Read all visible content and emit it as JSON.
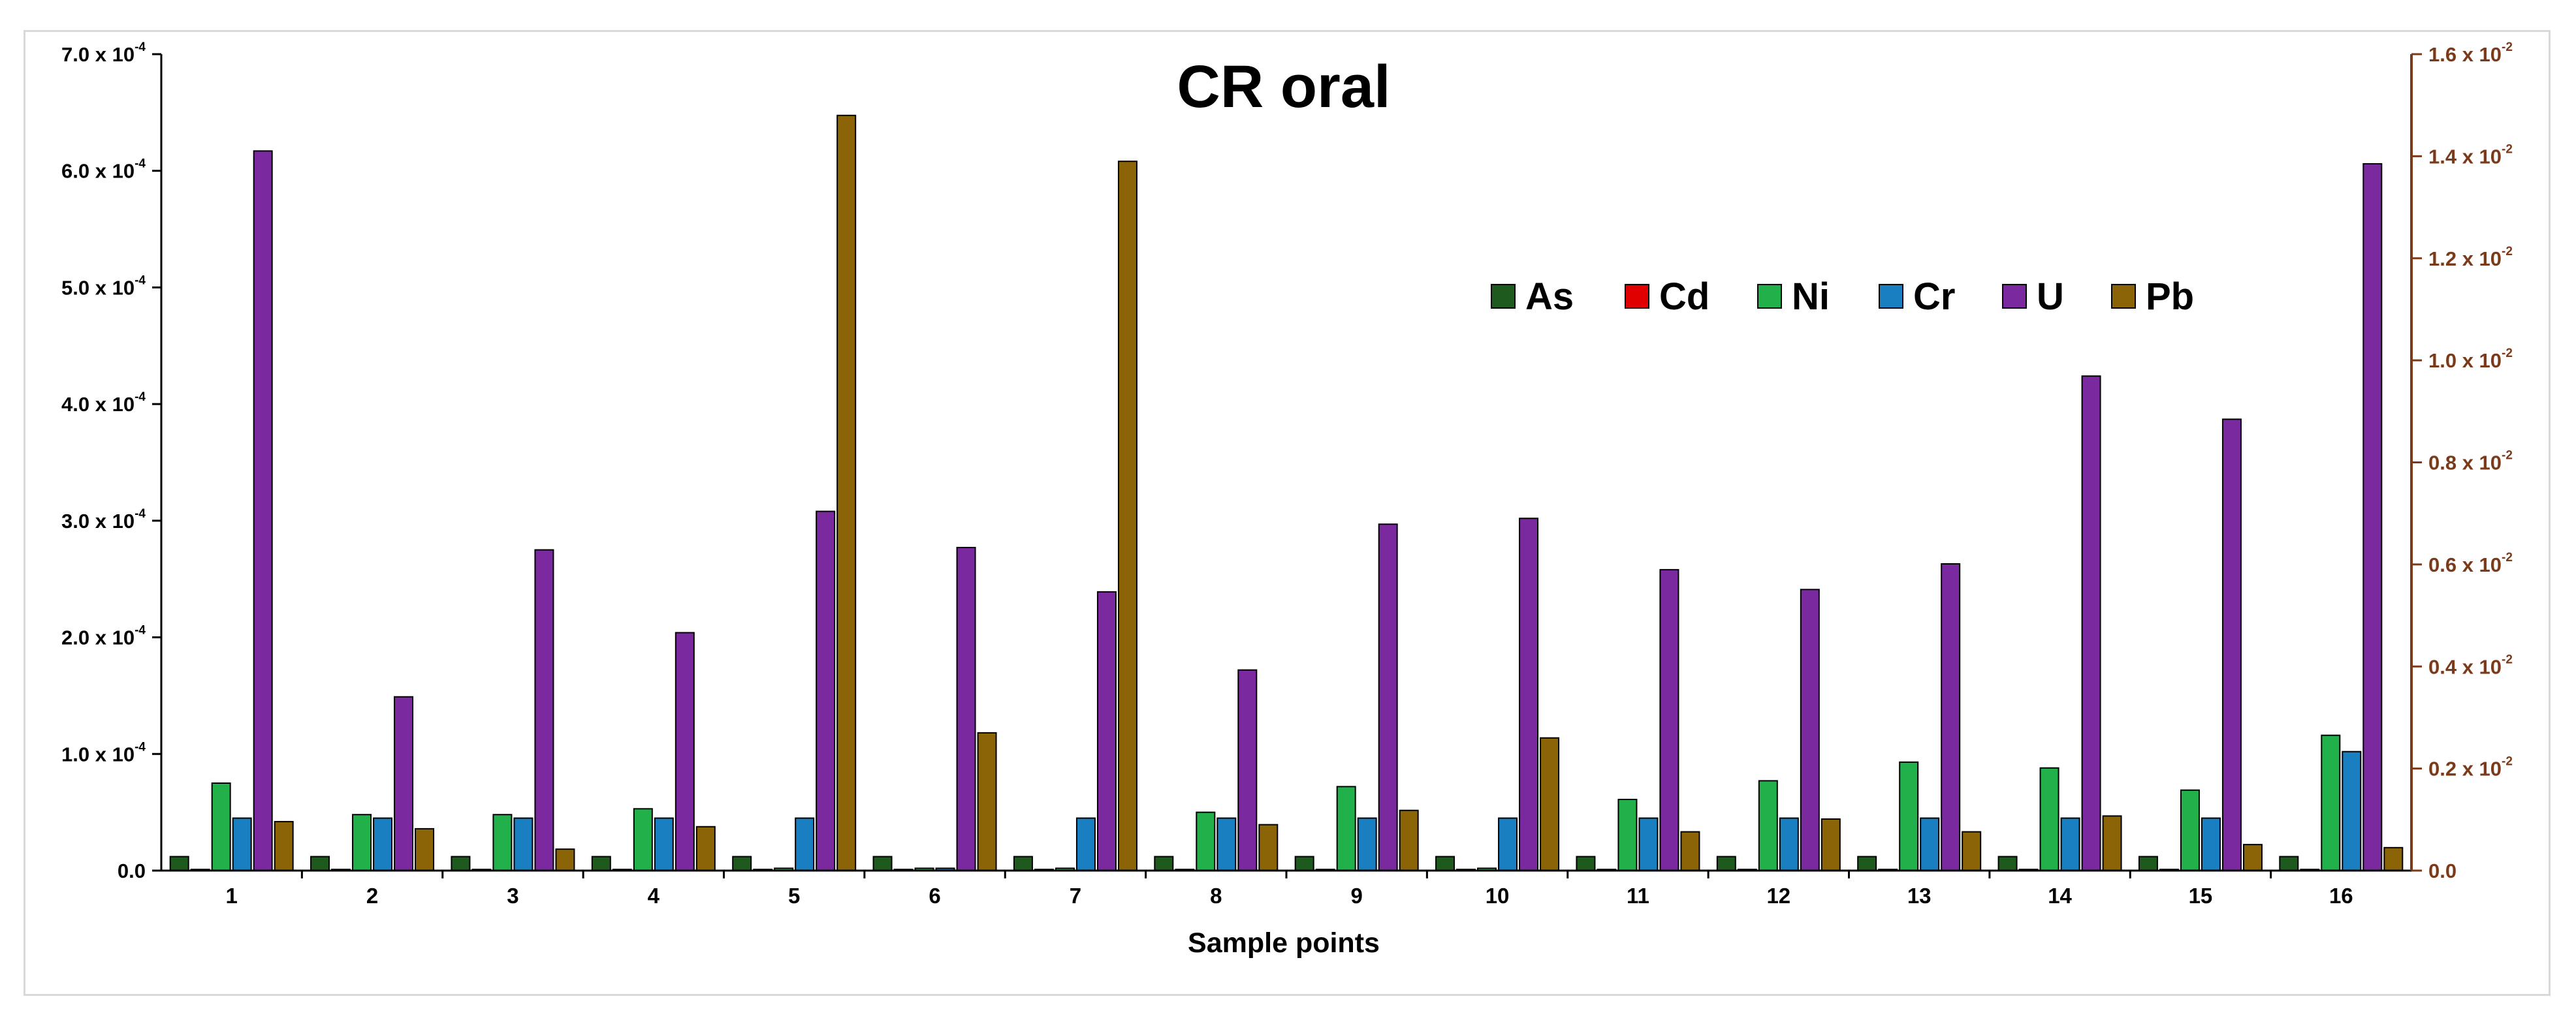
{
  "chart_data": {
    "type": "bar",
    "title": "CR oral",
    "xlabel": "Sample points",
    "ylabel": "",
    "categories": [
      "1",
      "2",
      "3",
      "4",
      "5",
      "6",
      "7",
      "8",
      "9",
      "10",
      "11",
      "12",
      "13",
      "14",
      "15",
      "16"
    ],
    "left_axis": {
      "ylim": [
        0,
        0.0007
      ],
      "ticks": [
        {
          "mantissa": "0.0",
          "exp": ""
        },
        {
          "mantissa": "1.0 x 10",
          "exp": "-4"
        },
        {
          "mantissa": "2.0 x 10",
          "exp": "-4"
        },
        {
          "mantissa": "3.0 x 10",
          "exp": "-4"
        },
        {
          "mantissa": "4.0 x 10",
          "exp": "-4"
        },
        {
          "mantissa": "5.0 x 10",
          "exp": "-4"
        },
        {
          "mantissa": "6.0 x 10",
          "exp": "-4"
        },
        {
          "mantissa": "7.0 x 10",
          "exp": "-4"
        }
      ],
      "tick_values": [
        0,
        0.0001,
        0.0002,
        0.0003,
        0.0004,
        0.0005,
        0.0006,
        0.0007
      ]
    },
    "right_axis": {
      "ylim": [
        0,
        0.016
      ],
      "color": "#7b3a1a",
      "ticks": [
        {
          "mantissa": "0.0",
          "exp": ""
        },
        {
          "mantissa": "0.2 x 10",
          "exp": "-2"
        },
        {
          "mantissa": "0.4 x 10",
          "exp": "-2"
        },
        {
          "mantissa": "0.6 x 10",
          "exp": "-2"
        },
        {
          "mantissa": "0.8 x 10",
          "exp": "-2"
        },
        {
          "mantissa": "1.0 x 10",
          "exp": "-2"
        },
        {
          "mantissa": "1.2 x 10",
          "exp": "-2"
        },
        {
          "mantissa": "1.4 x 10",
          "exp": "-2"
        },
        {
          "mantissa": "1.6 x 10",
          "exp": "-2"
        }
      ],
      "tick_values": [
        0,
        0.002,
        0.004,
        0.006,
        0.008,
        0.01,
        0.012,
        0.014,
        0.016
      ]
    },
    "series": [
      {
        "name": "As",
        "axis": "left",
        "color": "#1e5a1e",
        "values": [
          1.2e-05,
          1.2e-05,
          1.2e-05,
          1.2e-05,
          1.2e-05,
          1.2e-05,
          1.2e-05,
          1.2e-05,
          1.2e-05,
          1.2e-05,
          1.2e-05,
          1.2e-05,
          1.2e-05,
          1.2e-05,
          1.2e-05,
          1.2e-05
        ]
      },
      {
        "name": "Cd",
        "axis": "left",
        "color": "#e00000",
        "values": [
          1e-06,
          1e-06,
          1e-06,
          1e-06,
          1e-06,
          1e-06,
          1e-06,
          1e-06,
          1e-06,
          1e-06,
          1e-06,
          1e-06,
          1e-06,
          1e-06,
          1e-06,
          1e-06
        ]
      },
      {
        "name": "Ni",
        "axis": "left",
        "color": "#22b04b",
        "values": [
          7.5e-05,
          4.8e-05,
          4.8e-05,
          5.3e-05,
          2e-06,
          2e-06,
          2e-06,
          5e-05,
          7.2e-05,
          2e-06,
          6.1e-05,
          7.7e-05,
          9.3e-05,
          8.8e-05,
          6.9e-05,
          0.000116
        ]
      },
      {
        "name": "Cr",
        "axis": "left",
        "color": "#1a7fc1",
        "values": [
          4.5e-05,
          4.5e-05,
          4.5e-05,
          4.5e-05,
          4.5e-05,
          2e-06,
          4.5e-05,
          4.5e-05,
          4.5e-05,
          4.5e-05,
          4.5e-05,
          4.5e-05,
          4.5e-05,
          4.5e-05,
          4.5e-05,
          0.000102
        ]
      },
      {
        "name": "U",
        "axis": "left",
        "color": "#7a2a9e",
        "values": [
          0.000617,
          0.000149,
          0.000275,
          0.000204,
          0.000308,
          0.000277,
          0.000239,
          0.000172,
          0.000297,
          0.000302,
          0.000258,
          0.000241,
          0.000263,
          0.000424,
          0.000387,
          0.000606
        ]
      },
      {
        "name": "Pb",
        "axis": "right",
        "color": "#8b6408",
        "values": [
          0.00096,
          0.00082,
          0.00042,
          0.00086,
          0.0148,
          0.0027,
          0.0139,
          0.0009,
          0.00118,
          0.0026,
          0.00076,
          0.00101,
          0.00076,
          0.00107,
          0.00051,
          0.00045
        ]
      }
    ],
    "legend": {
      "position": "top-right",
      "order": [
        "As",
        "Cd",
        "Ni",
        "Cr",
        "U",
        "Pb"
      ]
    }
  }
}
